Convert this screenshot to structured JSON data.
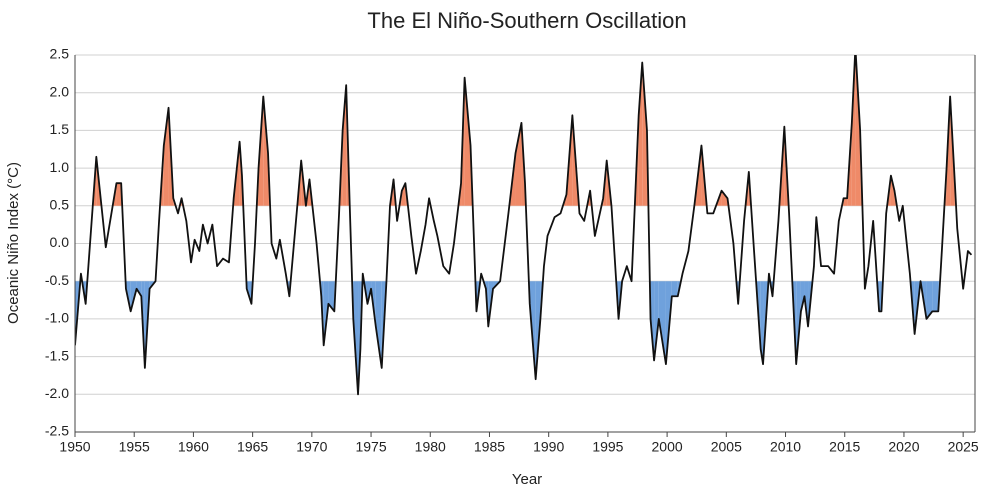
{
  "chart_data": {
    "type": "line",
    "title": "The El Niño-Southern Oscillation",
    "x_label": "Year",
    "y_label": "Oceanic Niño Index (°C)",
    "x": [
      1950,
      1950.5,
      1950.9,
      1951.8,
      1952.6,
      1953.5,
      1953.9,
      1954.3,
      1954.7,
      1955.2,
      1955.6,
      1955.9,
      1956.3,
      1956.8,
      1957.1,
      1957.5,
      1957.9,
      1958.3,
      1958.7,
      1959.0,
      1959.4,
      1959.8,
      1960.1,
      1960.5,
      1960.8,
      1961.2,
      1961.6,
      1962.0,
      1962.5,
      1963.0,
      1963.4,
      1963.9,
      1964.1,
      1964.5,
      1964.9,
      1965.2,
      1965.5,
      1965.9,
      1966.3,
      1966.6,
      1967.0,
      1967.3,
      1967.8,
      1968.1,
      1968.8,
      1969.1,
      1969.5,
      1969.8,
      1970.4,
      1970.8,
      1971.0,
      1971.4,
      1971.9,
      1972.3,
      1972.6,
      1972.9,
      1973.2,
      1973.5,
      1973.9,
      1974.1,
      1974.3,
      1974.7,
      1975.0,
      1975.4,
      1975.9,
      1976.3,
      1976.6,
      1976.9,
      1977.2,
      1977.6,
      1977.9,
      1978.4,
      1978.8,
      1979.2,
      1979.6,
      1979.9,
      1980.3,
      1980.6,
      1981.1,
      1981.6,
      1982.0,
      1982.6,
      1982.9,
      1983.4,
      1983.7,
      1983.9,
      1984.3,
      1984.7,
      1984.9,
      1985.3,
      1985.9,
      1986.6,
      1987.2,
      1987.7,
      1988.0,
      1988.4,
      1988.9,
      1989.3,
      1989.6,
      1989.9,
      1990.5,
      1991.0,
      1991.5,
      1992.0,
      1992.6,
      1993.0,
      1993.5,
      1993.9,
      1994.6,
      1994.9,
      1995.3,
      1995.9,
      1996.2,
      1996.6,
      1997.0,
      1997.3,
      1997.6,
      1997.9,
      1998.3,
      1998.6,
      1998.9,
      1999.3,
      1999.9,
      2000.4,
      2000.9,
      2001.3,
      2001.8,
      2002.3,
      2002.9,
      2003.4,
      2003.9,
      2004.6,
      2005.1,
      2005.6,
      2006.0,
      2006.5,
      2006.9,
      2007.3,
      2007.9,
      2008.1,
      2008.6,
      2008.9,
      2009.4,
      2009.9,
      2010.3,
      2010.9,
      2011.3,
      2011.6,
      2011.9,
      2012.4,
      2012.6,
      2013.0,
      2013.6,
      2014.1,
      2014.5,
      2014.9,
      2015.2,
      2015.6,
      2015.9,
      2016.3,
      2016.7,
      2017.0,
      2017.4,
      2017.9,
      2018.1,
      2018.5,
      2018.9,
      2019.2,
      2019.6,
      2019.9,
      2020.5,
      2020.9,
      2021.4,
      2021.9,
      2022.4,
      2022.9,
      2023.2,
      2023.6,
      2023.9,
      2024.3,
      2024.5,
      2025.0,
      2025.4,
      2025.7
    ],
    "values": [
      -1.35,
      -0.4,
      -0.8,
      1.15,
      -0.05,
      0.8,
      0.8,
      -0.6,
      -0.9,
      -0.6,
      -0.7,
      -1.65,
      -0.6,
      -0.5,
      0.3,
      1.3,
      1.8,
      0.6,
      0.4,
      0.6,
      0.3,
      -0.25,
      0.05,
      -0.1,
      0.25,
      0.0,
      0.25,
      -0.3,
      -0.2,
      -0.25,
      0.6,
      1.35,
      0.9,
      -0.6,
      -0.8,
      0.0,
      1.0,
      1.95,
      1.2,
      0.0,
      -0.2,
      0.05,
      -0.4,
      -0.7,
      0.55,
      1.1,
      0.5,
      0.85,
      0.0,
      -0.7,
      -1.35,
      -0.8,
      -0.9,
      0.4,
      1.5,
      2.1,
      0.5,
      -1.0,
      -2.0,
      -1.4,
      -0.4,
      -0.8,
      -0.6,
      -1.1,
      -1.65,
      -0.5,
      0.5,
      0.85,
      0.3,
      0.7,
      0.8,
      0.1,
      -0.4,
      -0.1,
      0.25,
      0.6,
      0.3,
      0.1,
      -0.3,
      -0.4,
      0.0,
      0.8,
      2.2,
      1.3,
      0.0,
      -0.9,
      -0.4,
      -0.6,
      -1.1,
      -0.6,
      -0.5,
      0.4,
      1.2,
      1.6,
      0.8,
      -0.8,
      -1.8,
      -1.0,
      -0.3,
      0.1,
      0.35,
      0.4,
      0.65,
      1.7,
      0.4,
      0.3,
      0.7,
      0.1,
      0.6,
      1.1,
      0.5,
      -1.0,
      -0.5,
      -0.3,
      -0.5,
      0.6,
      1.7,
      2.4,
      1.5,
      -1.0,
      -1.55,
      -1.0,
      -1.6,
      -0.7,
      -0.7,
      -0.4,
      -0.1,
      0.5,
      1.3,
      0.4,
      0.4,
      0.7,
      0.6,
      0.0,
      -0.8,
      0.3,
      0.95,
      0.0,
      -1.4,
      -1.6,
      -0.4,
      -0.7,
      0.3,
      1.55,
      0.4,
      -1.6,
      -0.9,
      -0.7,
      -1.1,
      -0.3,
      0.35,
      -0.3,
      -0.3,
      -0.4,
      0.3,
      0.6,
      0.6,
      1.6,
      2.6,
      1.5,
      -0.6,
      -0.3,
      0.3,
      -0.9,
      -0.9,
      0.4,
      0.9,
      0.7,
      0.3,
      0.5,
      -0.4,
      -1.2,
      -0.5,
      -1.0,
      -0.9,
      -0.9,
      -0.1,
      1.0,
      1.95,
      0.8,
      0.2,
      -0.6,
      -0.1,
      -0.15
    ],
    "color": "#111111",
    "fill_above": {
      "value": 0.5,
      "color": "#ef8a68"
    },
    "fill_below": {
      "value": -0.5,
      "color": "#6fa1dc"
    },
    "xlim": [
      1950,
      2026
    ],
    "xticks": [
      1950,
      1955,
      1960,
      1965,
      1970,
      1975,
      1980,
      1985,
      1990,
      1995,
      2000,
      2005,
      2010,
      2015,
      2020,
      2025
    ],
    "ylim": [
      -2.5,
      2.5
    ],
    "yticks": [
      {
        "value": -2.5,
        "label": "-2.5"
      },
      {
        "value": -2,
        "label": "-2.0"
      },
      -1.5,
      {
        "value": -1,
        "label": "-1.0"
      },
      -0.5,
      {
        "value": 0,
        "label": "0.0"
      },
      0.5,
      {
        "value": 1,
        "label": "1.0"
      },
      1.5,
      {
        "value": 2,
        "label": "2.0"
      },
      2.5
    ],
    "grid": true
  }
}
